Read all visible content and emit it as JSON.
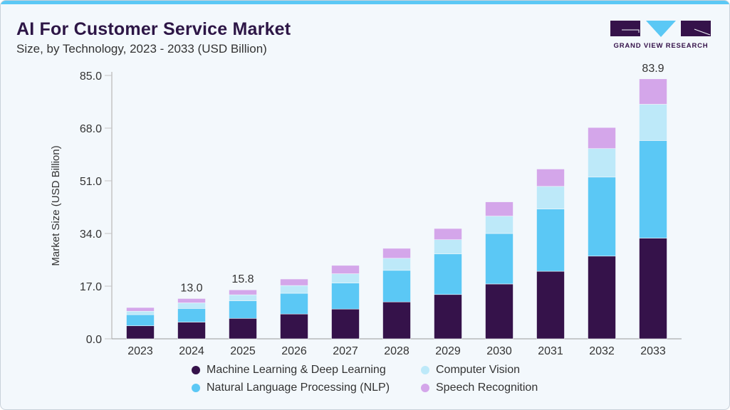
{
  "header": {
    "title": "AI For Customer Service Market",
    "subtitle": "Size, by Technology, 2023 - 2033 (USD Billion)",
    "logo_text": "GRAND VIEW RESEARCH"
  },
  "colors": {
    "ml": "#35124a",
    "nlp": "#5bc8f5",
    "cv": "#bde9f9",
    "sr": "#d4a6ea",
    "accent": "#5bc8f5"
  },
  "chart_data": {
    "type": "bar",
    "stacked": true,
    "title": "AI For Customer Service Market",
    "xlabel": "",
    "ylabel": "Market Size (USD Billion)",
    "ylim": [
      0,
      85
    ],
    "yticks": [
      "0.0",
      "17.0",
      "34.0",
      "51.0",
      "68.0",
      "85.0"
    ],
    "categories": [
      "2023",
      "2024",
      "2025",
      "2026",
      "2027",
      "2028",
      "2029",
      "2030",
      "2031",
      "2032",
      "2033"
    ],
    "series": [
      {
        "name": "Machine Learning & Deep Learning",
        "color_key": "ml",
        "values": [
          4.2,
          5.4,
          6.6,
          8.0,
          9.6,
          11.9,
          14.3,
          17.7,
          21.8,
          26.7,
          32.5
        ]
      },
      {
        "name": "Natural Language Processing (NLP)",
        "color_key": "nlp",
        "values": [
          3.6,
          4.4,
          5.7,
          6.7,
          8.4,
          10.2,
          13.1,
          16.3,
          20.1,
          25.5,
          31.5
        ]
      },
      {
        "name": "Computer Vision",
        "color_key": "cv",
        "values": [
          1.1,
          1.8,
          1.9,
          2.5,
          3.0,
          3.9,
          4.6,
          5.6,
          7.3,
          9.2,
          11.7
        ]
      },
      {
        "name": "Speech Recognition",
        "color_key": "sr",
        "values": [
          1.2,
          1.4,
          1.6,
          2.1,
          2.7,
          3.2,
          3.6,
          4.6,
          5.6,
          6.8,
          8.2
        ]
      }
    ],
    "annotations": [
      {
        "category": "2024",
        "text": "13.0"
      },
      {
        "category": "2025",
        "text": "15.8"
      },
      {
        "category": "2033",
        "text": "83.9"
      }
    ],
    "legend": {
      "placement": "bottom",
      "items": [
        "Machine Learning & Deep Learning",
        "Computer Vision",
        "Natural Language Processing (NLP)",
        "Speech Recognition"
      ]
    },
    "grid": false
  }
}
